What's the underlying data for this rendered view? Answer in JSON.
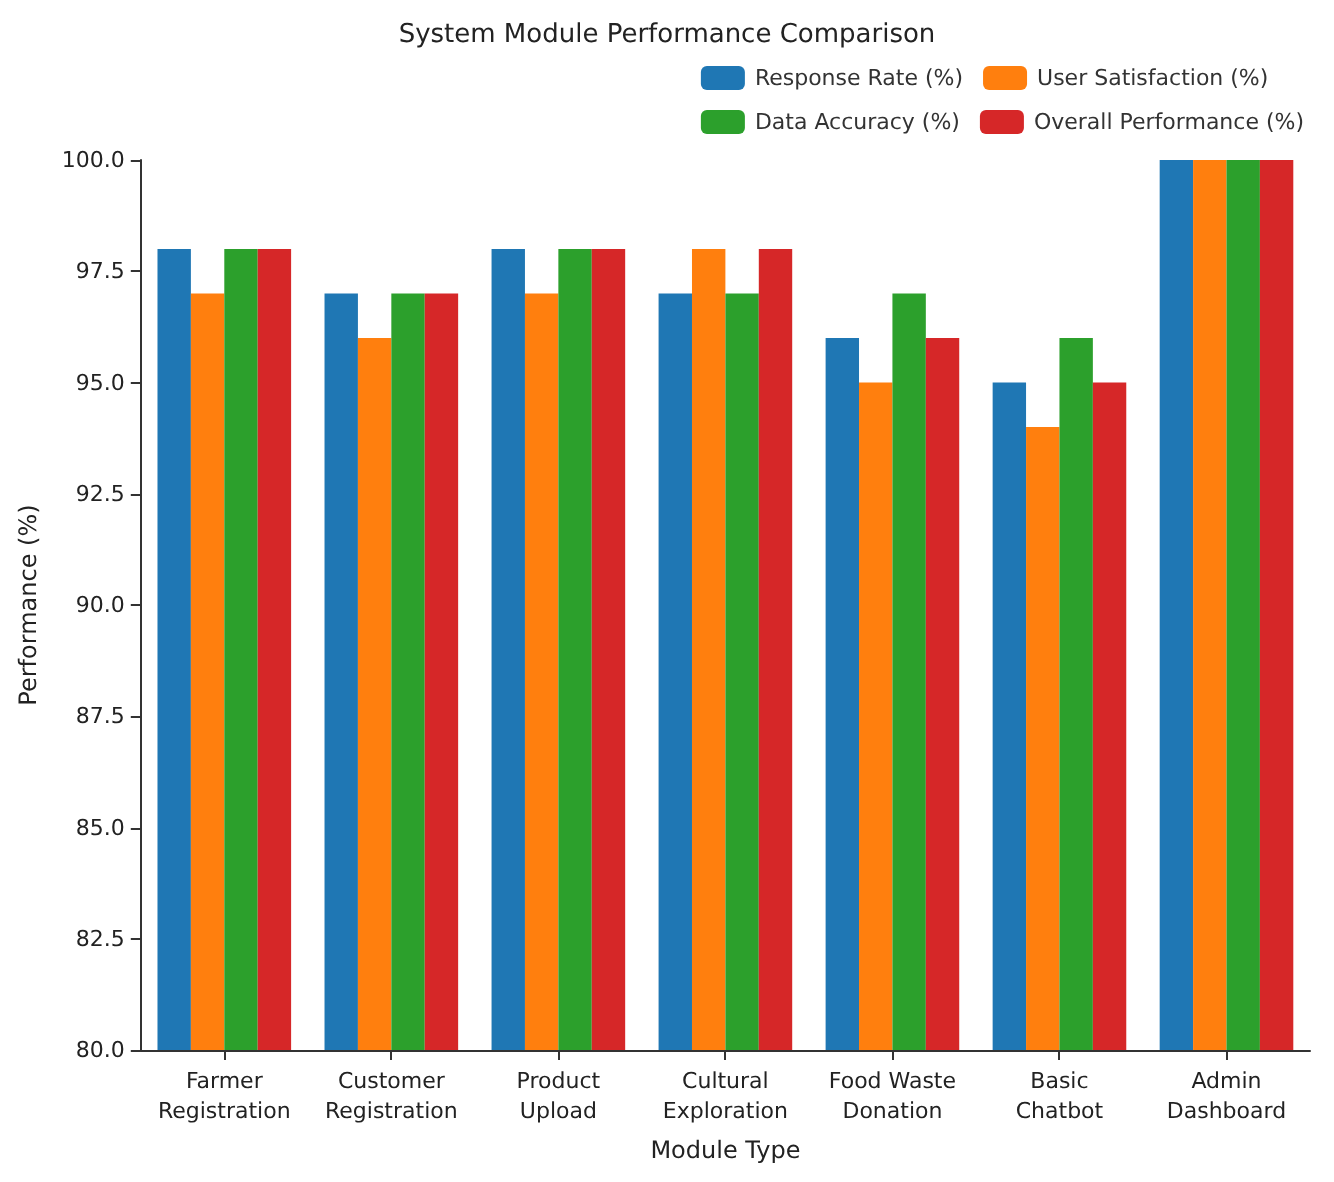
{
  "chart_data": {
    "type": "bar",
    "title": "System Module Performance Comparison",
    "xlabel": "Module Type",
    "ylabel": "Performance (%)",
    "categories": [
      "Farmer\nRegistration",
      "Customer\nRegistration",
      "Product\nUpload",
      "Cultural\nExploration",
      "Food Waste\nDonation",
      "Basic\nChatbot",
      "Admin\nDashboard"
    ],
    "series": [
      {
        "name": "Response Rate (%)",
        "color": "#1f77b4",
        "values": [
          98,
          97,
          98,
          97,
          96,
          95,
          100
        ]
      },
      {
        "name": "User Satisfaction (%)",
        "color": "#ff7f0e",
        "values": [
          97,
          96,
          97,
          98,
          95,
          94,
          100
        ]
      },
      {
        "name": "Data Accuracy (%)",
        "color": "#2ca02c",
        "values": [
          98,
          97,
          98,
          97,
          97,
          96,
          100
        ]
      },
      {
        "name": "Overall Performance (%)",
        "color": "#d62728",
        "values": [
          98,
          97,
          98,
          98,
          96,
          95,
          100
        ]
      }
    ],
    "ylim": [
      80,
      100
    ],
    "yticks": [
      {
        "value": 80,
        "label": "80.0"
      },
      {
        "value": 82.5,
        "label": "82.5"
      },
      {
        "value": 85,
        "label": "85.0"
      },
      {
        "value": 87.5,
        "label": "87.5"
      },
      {
        "value": 90,
        "label": "90.0"
      },
      {
        "value": 92.5,
        "label": "92.5"
      },
      {
        "value": 95,
        "label": "95.0"
      },
      {
        "value": 97.5,
        "label": "97.5"
      },
      {
        "value": 100,
        "label": "100.0"
      }
    ],
    "grid": false,
    "legend": "top right"
  }
}
